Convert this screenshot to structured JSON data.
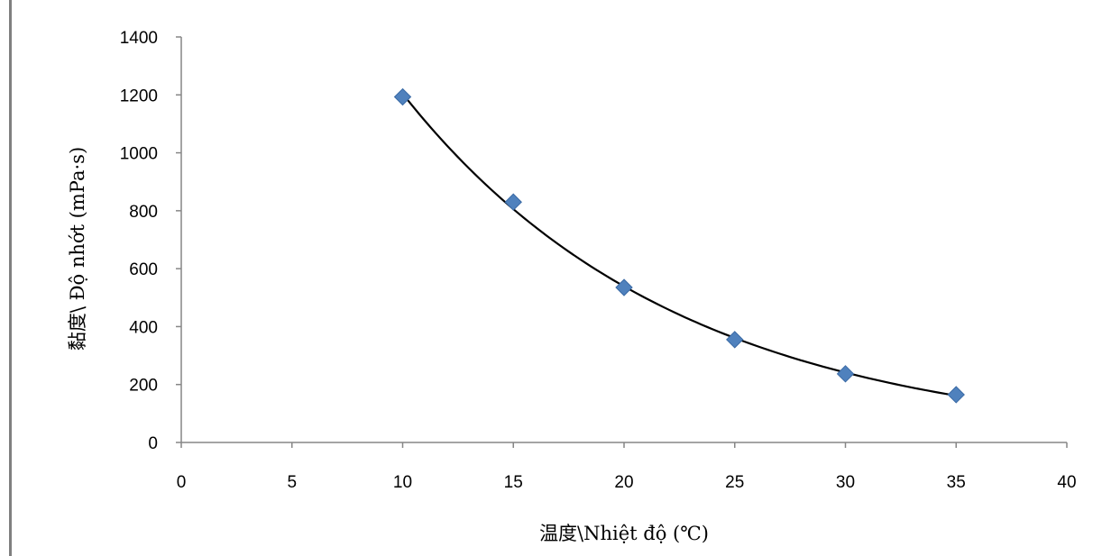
{
  "title": "",
  "chart_data": {
    "type": "scatter",
    "xlabel": "温度\\Nhiệt độ (℃)",
    "ylabel": "黏度\\ Độ nhớt (mPa·s)",
    "xlim": [
      0,
      40
    ],
    "ylim": [
      0,
      1400
    ],
    "x_ticks": [
      "0",
      "5",
      "10",
      "15",
      "20",
      "25",
      "30",
      "35",
      "40"
    ],
    "y_ticks": [
      "0",
      "200",
      "400",
      "600",
      "800",
      "1000",
      "1200",
      "1400"
    ],
    "grid": false,
    "legend": "none",
    "series": [
      {
        "marker": "diamond",
        "color": "#4f81bd",
        "x": [
          10,
          15,
          20,
          25,
          30,
          35
        ],
        "y": [
          1193,
          830,
          535,
          355,
          237,
          165
        ]
      }
    ],
    "trendline": {
      "type": "exponential",
      "color": "#000000"
    }
  }
}
